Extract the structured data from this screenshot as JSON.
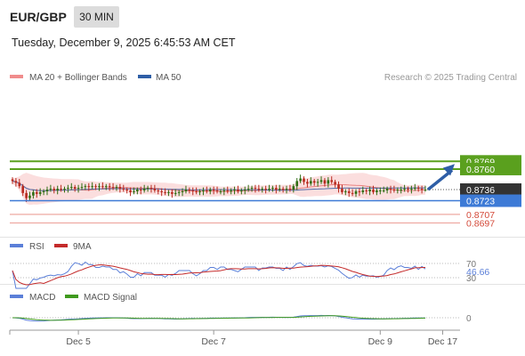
{
  "header": {
    "pair": "EUR/GBP",
    "timeframe": "30 MIN",
    "datetime": "Tuesday, December 9, 2025 6:45:53 AM CET"
  },
  "colors": {
    "resistance": "#5aa01e",
    "support": "#3d7ad6",
    "lower_levels": "#d44a3a",
    "current": "#333333",
    "bull_candle": "#2f6d13",
    "bear_candle": "#b82a1f",
    "bb_band": "#f8c3c3",
    "ma50": "#4f6aa8",
    "rsi": "#5b7fd8",
    "rsi_ma": "#c42a2a",
    "macd": "#5b7fd8",
    "macd_signal": "#3f9a1e",
    "arrow": "#2e5ea6"
  },
  "chart_data": [
    {
      "type": "candlestick",
      "title": "",
      "legend": [
        {
          "name": "MA 20 + Bollinger Bands",
          "color": "#f08c8c"
        },
        {
          "name": "MA 50",
          "color": "#2e5ea6"
        }
      ],
      "credit": "Research © 2025 Trading Central",
      "ylim": [
        0.8693,
        0.8773
      ],
      "levels": [
        {
          "value": 0.8769,
          "label": "0.8769",
          "kind": "resistance"
        },
        {
          "value": 0.876,
          "label": "0.8760",
          "kind": "resistance"
        },
        {
          "value": 0.8736,
          "label": "0.8736",
          "kind": "current"
        },
        {
          "value": 0.8723,
          "label": "0.8723",
          "kind": "support"
        },
        {
          "value": 0.8707,
          "label": "0.8707",
          "kind": "target"
        },
        {
          "value": 0.8697,
          "label": "0.8697",
          "kind": "target"
        }
      ],
      "closes": [
        0.8746,
        0.8744,
        0.874,
        0.8732,
        0.8726,
        0.8729,
        0.8733,
        0.8731,
        0.8733,
        0.8734,
        0.8736,
        0.8737,
        0.8735,
        0.8737,
        0.8736,
        0.8737,
        0.8738,
        0.8739,
        0.8737,
        0.8738,
        0.8739,
        0.874,
        0.8739,
        0.874,
        0.8739,
        0.874,
        0.8739,
        0.874,
        0.8739,
        0.8738,
        0.8739,
        0.8737,
        0.8736,
        0.8735,
        0.8733,
        0.8734,
        0.8736,
        0.8735,
        0.8737,
        0.8738,
        0.8737,
        0.8735,
        0.8734,
        0.8733,
        0.8732,
        0.8733,
        0.8731,
        0.8732,
        0.8733,
        0.8734,
        0.8736,
        0.8735,
        0.8734,
        0.8733,
        0.8734,
        0.8735,
        0.8734,
        0.8736,
        0.8735,
        0.8734,
        0.8734,
        0.8735,
        0.8734,
        0.8735,
        0.8736,
        0.8734,
        0.8735,
        0.8736,
        0.8737,
        0.8738,
        0.8737,
        0.8736,
        0.8737,
        0.8736,
        0.8737,
        0.8738,
        0.8736,
        0.8737,
        0.8736,
        0.8737,
        0.8736,
        0.874,
        0.8746,
        0.8749,
        0.8745,
        0.8743,
        0.8746,
        0.8744,
        0.8745,
        0.8747,
        0.8743,
        0.8747,
        0.8745,
        0.8742,
        0.8737,
        0.8733,
        0.8734,
        0.8732,
        0.8731,
        0.8734,
        0.8733,
        0.8735,
        0.8734,
        0.8736,
        0.8733,
        0.8735,
        0.8735,
        0.8735,
        0.8737,
        0.8736,
        0.8735,
        0.8736,
        0.8736,
        0.8737,
        0.8736,
        0.8737,
        0.8738,
        0.8737,
        0.8736,
        0.8736
      ],
      "forecast_arrow": {
        "from": 0.8736,
        "to": 0.8769
      }
    },
    {
      "type": "line",
      "panel": "RSI",
      "series": [
        {
          "name": "RSI"
        },
        {
          "name": "9MA"
        }
      ],
      "y_ticks": [
        {
          "value": 70,
          "label": "70"
        },
        {
          "value": 30,
          "label": "30"
        }
      ],
      "current": "46.66",
      "ylim": [
        20,
        80
      ]
    },
    {
      "type": "line",
      "panel": "MACD",
      "series": [
        {
          "name": "MACD"
        },
        {
          "name": "MACD Signal"
        }
      ],
      "y_ticks": [
        {
          "value": 0,
          "label": "0"
        }
      ]
    },
    {
      "type": "axis",
      "x_tick_labels": [
        {
          "label": "Dec 5",
          "index": 19
        },
        {
          "label": "Dec 7",
          "index": 58
        },
        {
          "label": "Dec 9",
          "index": 106
        },
        {
          "label": "Dec 17",
          "index": 124
        }
      ]
    }
  ]
}
